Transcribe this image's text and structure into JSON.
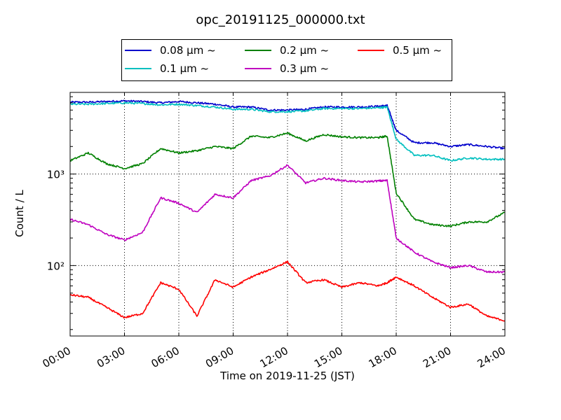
{
  "chart_data": {
    "type": "line",
    "title": "opc_20191125_000000.txt",
    "xlabel": "Time on 2019-11-25 (JST)",
    "ylabel": "Count / L",
    "xlim": [
      0,
      24
    ],
    "ylim": [
      17,
      7800
    ],
    "yscale": "log",
    "grid": true,
    "legend_position": "top",
    "x_tick_labels": [
      "00:00",
      "03:00",
      "06:00",
      "09:00",
      "12:00",
      "15:00",
      "18:00",
      "21:00",
      "24:00"
    ],
    "y_tick_labels": [
      "10²",
      "10³"
    ],
    "x": [
      0,
      1,
      2,
      3,
      4,
      5,
      6,
      7,
      8,
      9,
      10,
      11,
      12,
      13,
      14,
      15,
      16,
      17,
      17.5,
      18,
      19,
      20,
      21,
      22,
      23,
      24
    ],
    "series": [
      {
        "name": "0.08 μm ~",
        "color": "#0000cc",
        "values": [
          6100,
          6100,
          6200,
          6300,
          6200,
          6000,
          6200,
          6000,
          5800,
          5400,
          5400,
          5000,
          5000,
          5100,
          5400,
          5400,
          5400,
          5500,
          5600,
          3000,
          2200,
          2200,
          2000,
          2100,
          2000,
          1900
        ]
      },
      {
        "name": "0.1 μm ~",
        "color": "#00bfbf",
        "values": [
          5800,
          5800,
          5900,
          6000,
          5900,
          5700,
          5800,
          5600,
          5400,
          5100,
          5100,
          4800,
          4800,
          4900,
          5200,
          5200,
          5200,
          5300,
          5400,
          2400,
          1600,
          1600,
          1400,
          1500,
          1450,
          1450
        ]
      },
      {
        "name": "0.2 μm ~",
        "color": "#008000",
        "values": [
          1400,
          1700,
          1300,
          1150,
          1300,
          1900,
          1700,
          1800,
          2000,
          1900,
          2600,
          2500,
          2800,
          2300,
          2700,
          2550,
          2500,
          2500,
          2600,
          620,
          320,
          280,
          270,
          300,
          300,
          380
        ]
      },
      {
        "name": "0.3 μm ~",
        "color": "#bf00bf",
        "values": [
          320,
          280,
          220,
          190,
          230,
          550,
          480,
          380,
          600,
          550,
          850,
          950,
          1250,
          800,
          900,
          850,
          820,
          840,
          850,
          200,
          140,
          110,
          95,
          100,
          85,
          85
        ]
      },
      {
        "name": "0.5 μm ~",
        "color": "#ff0000",
        "values": [
          48,
          45,
          35,
          27,
          30,
          65,
          55,
          28,
          70,
          58,
          75,
          90,
          110,
          65,
          70,
          58,
          65,
          60,
          65,
          75,
          60,
          45,
          35,
          38,
          28,
          25
        ]
      }
    ]
  }
}
